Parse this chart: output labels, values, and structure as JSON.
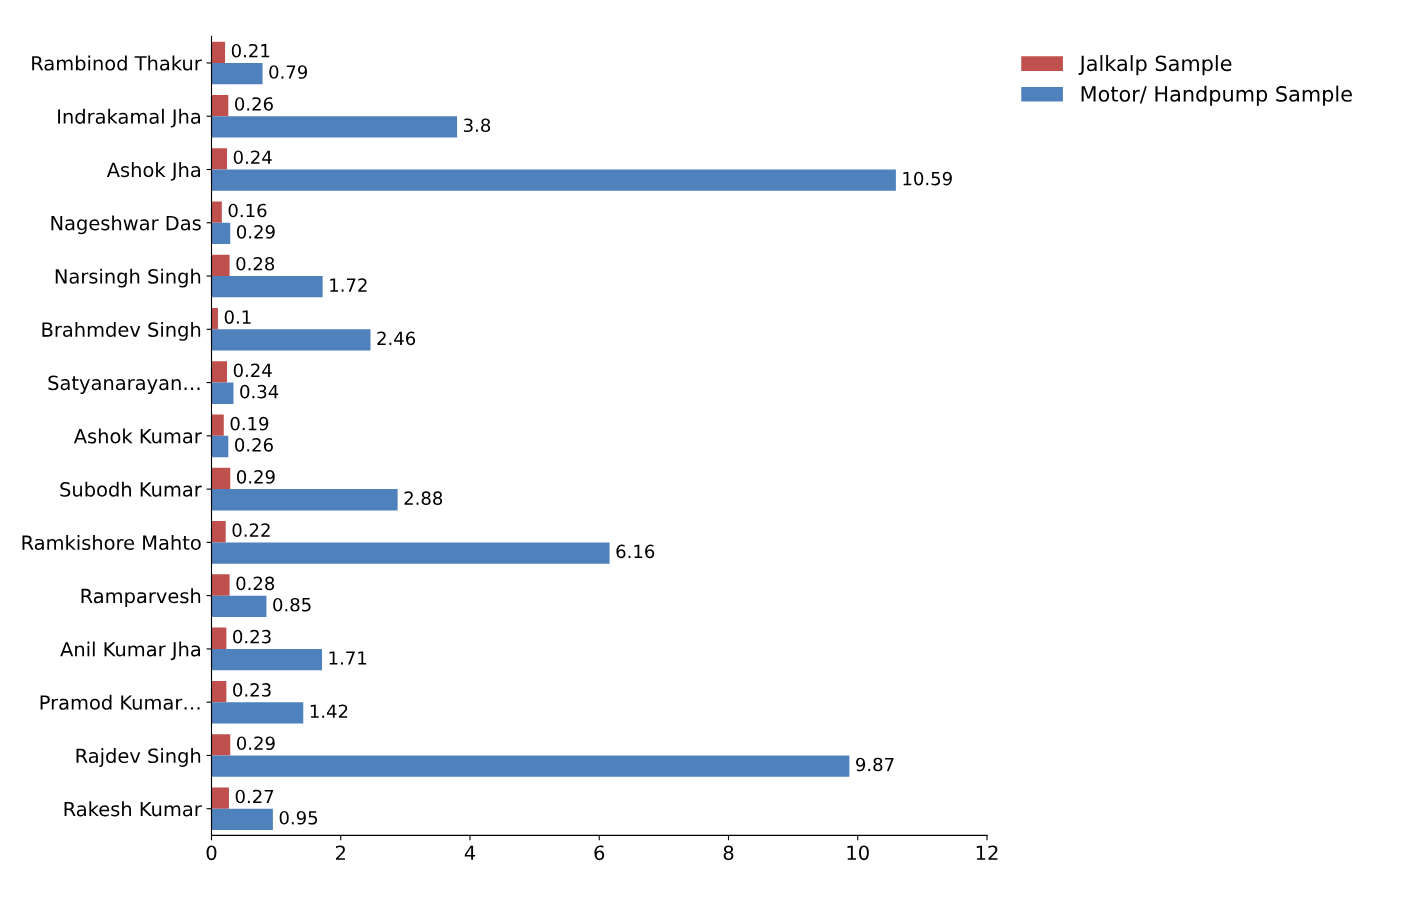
{
  "chart_data": {
    "type": "bar",
    "orientation": "horizontal",
    "categories": [
      "Rambinod Thakur",
      "Indrakamal Jha",
      "Ashok Jha",
      "Nageshwar Das",
      "Narsingh Singh",
      "Brahmdev Singh",
      "Satyanarayan…",
      "Ashok Kumar",
      "Subodh Kumar",
      "Ramkishore Mahto",
      "Ramparvesh",
      "Anil Kumar Jha",
      "Pramod Kumar…",
      "Rajdev Singh",
      "Rakesh Kumar"
    ],
    "series": [
      {
        "name": "Jalkalp Sample",
        "color": "#c0504d",
        "values": [
          0.21,
          0.26,
          0.24,
          0.16,
          0.28,
          0.1,
          0.24,
          0.19,
          0.29,
          0.22,
          0.28,
          0.23,
          0.23,
          0.29,
          0.27
        ]
      },
      {
        "name": "Motor/ Handpump Sample",
        "color": "#4f81bd",
        "values": [
          0.79,
          3.8,
          10.59,
          0.29,
          1.72,
          2.46,
          0.34,
          0.26,
          2.88,
          6.16,
          0.85,
          1.71,
          1.42,
          9.87,
          0.95
        ]
      }
    ],
    "xlim": [
      0,
      12
    ],
    "xticks": [
      0,
      2,
      4,
      6,
      8,
      10,
      12
    ],
    "data_labels": true,
    "legend": "top right",
    "grid": false
  }
}
